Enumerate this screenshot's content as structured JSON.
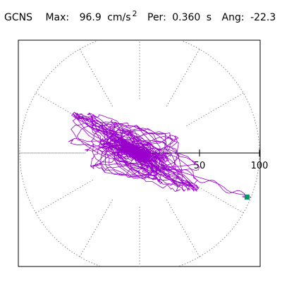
{
  "header": {
    "station": "GCNS",
    "max_label": "Max:",
    "max_value": "96.9",
    "max_unit": "cm/s",
    "max_unit_exp": "2",
    "per_label": "Per:",
    "per_value": "0.360",
    "per_unit": "s",
    "ang_label": "Ang:",
    "ang_value": "-22.3"
  },
  "chart_data": {
    "type": "scatter",
    "subtype": "polar-orbit",
    "title": "",
    "xlabel": "",
    "ylabel": "",
    "radial_range": [
      0,
      100
    ],
    "radial_ticks": [
      50,
      100
    ],
    "radial_tick_labels": [
      "50",
      "100"
    ],
    "spoke_angle_step_deg": 30,
    "grid": true,
    "peak": {
      "max": 96.9,
      "period_s": 0.36,
      "angle_deg": -22.3
    },
    "colors": {
      "orbit": "#9900cc",
      "peak_marker": "#009966",
      "grid": "#888888",
      "axis": "#000000"
    }
  }
}
